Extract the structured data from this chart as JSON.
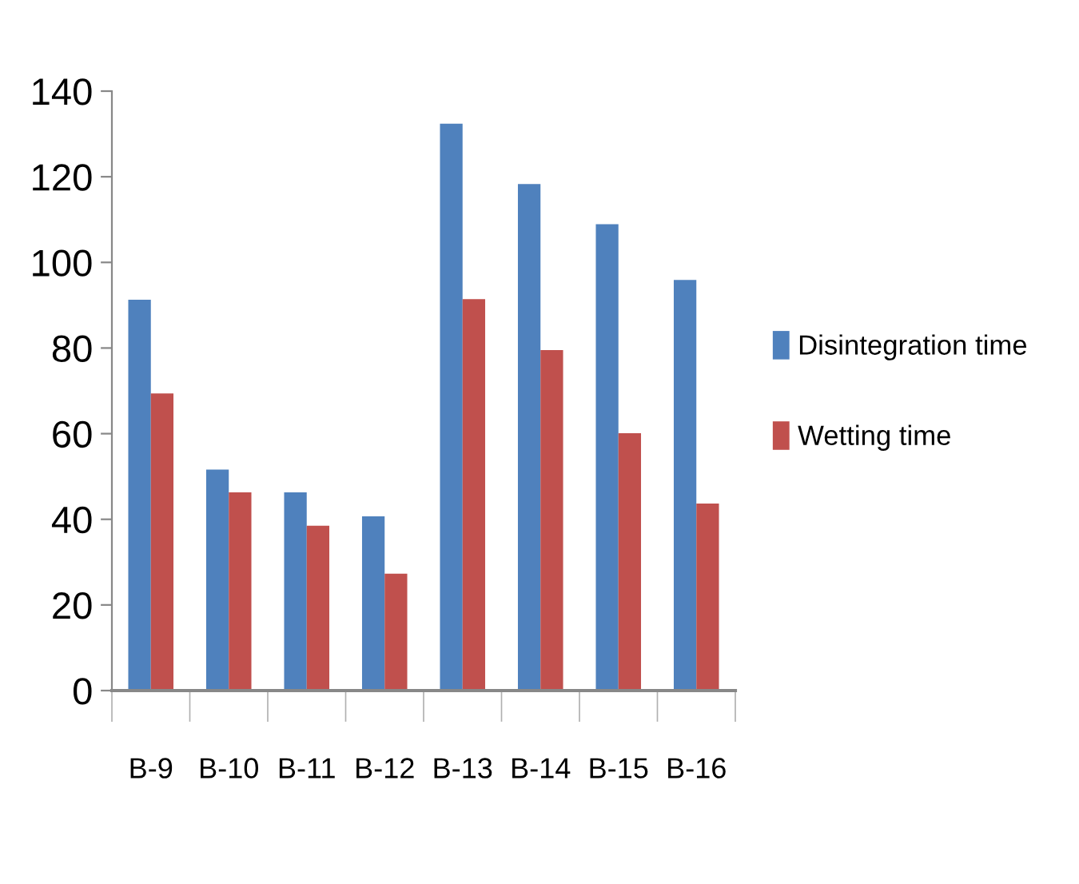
{
  "chart_data": {
    "type": "bar",
    "categories": [
      "B-9",
      "B-10",
      "B-11",
      "B-12",
      "B-13",
      "B-14",
      "B-15",
      "B-16"
    ],
    "series": [
      {
        "name": "Disintegration time",
        "color": "#4f81bd",
        "values": [
          91.3,
          51.6,
          46.3,
          40.7,
          132.4,
          118.3,
          108.9,
          95.9
        ]
      },
      {
        "name": "Wetting time",
        "color": "#c0504d",
        "values": [
          69.4,
          46.3,
          38.5,
          27.3,
          91.4,
          79.5,
          60.1,
          43.7
        ]
      }
    ],
    "ylim": [
      0,
      140
    ],
    "yticks": [
      0,
      20,
      40,
      60,
      80,
      100,
      120,
      140
    ],
    "grid": false,
    "legend": "right"
  }
}
